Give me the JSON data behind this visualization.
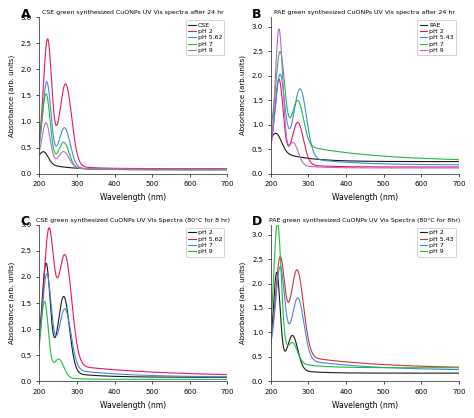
{
  "panel_A": {
    "title": "CSE green synthesized CuONPs UV Vis spectra after 24 hr",
    "legend_labels": [
      "CSE",
      "pH 2",
      "pH 5.62",
      "pH 7",
      "pH 9"
    ],
    "colors": [
      "#1a1a1a",
      "#e8175d",
      "#4488dd",
      "#22bb44",
      "#bb66cc"
    ],
    "ylabel": "Absorbance (arb. units)",
    "xlabel": "Wavelength (nm)",
    "xlim": [
      200,
      700
    ],
    "ylim": [
      0.0,
      3.0
    ],
    "yticks": [
      0.0,
      0.5,
      1.0,
      1.5,
      2.0,
      2.5,
      3.0
    ]
  },
  "panel_B": {
    "title": "PAE green synthesized CuONPs UV Vis spectra after 24 hr",
    "legend_labels": [
      "PAE",
      "pH 2",
      "pH 5.43",
      "pH 7",
      "pH 9"
    ],
    "colors": [
      "#1a1a1a",
      "#e8175d",
      "#4488dd",
      "#22bb44",
      "#bb66cc"
    ],
    "ylabel": "Absorbance (arb.units)",
    "xlabel": "Wavelength (nm)",
    "xlim": [
      200,
      700
    ],
    "ylim": [
      0.0,
      3.2
    ],
    "yticks": [
      0.0,
      0.5,
      1.0,
      1.5,
      2.0,
      2.5,
      3.0
    ]
  },
  "panel_C": {
    "title": "CSE green synthesized CuONPs UV Vis Spectra (80°C for 8 hr)",
    "legend_labels": [
      "pH 2",
      "pH 5.62",
      "pH 7",
      "pH 9"
    ],
    "colors": [
      "#1a1a1a",
      "#e8175d",
      "#4488dd",
      "#22bb44"
    ],
    "ylabel": "Absorbance (arb. units)",
    "xlabel": "Wavelength (nm)",
    "xlim": [
      200,
      700
    ],
    "ylim": [
      0.0,
      3.0
    ],
    "yticks": [
      0.0,
      0.5,
      1.0,
      1.5,
      2.0,
      2.5,
      3.0
    ]
  },
  "panel_D": {
    "title": "PAE green synthesized CuONPs UV Vis Spectra (80°C for 8hr)",
    "legend_labels": [
      "pH 2",
      "pH 5.43",
      "pH 7",
      "pH 9"
    ],
    "colors": [
      "#1a1a1a",
      "#cc3333",
      "#4488dd",
      "#22bb44"
    ],
    "ylabel": "Absorbance (arb. units)",
    "xlabel": "Wavelength (nm)",
    "xlim": [
      200,
      700
    ],
    "ylim": [
      0.0,
      3.2
    ],
    "yticks": [
      0.0,
      0.5,
      1.0,
      1.5,
      2.0,
      2.5,
      3.0
    ]
  },
  "bg_color": "#f0efee",
  "xticks": [
    200,
    300,
    400,
    500,
    600,
    700
  ]
}
